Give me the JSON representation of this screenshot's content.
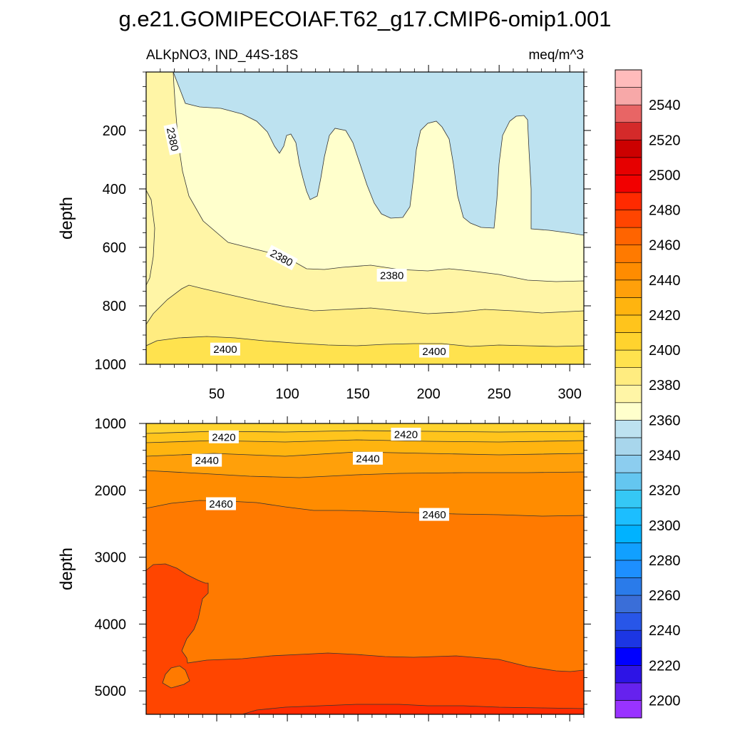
{
  "title": "g.e21.GOMIPECOIAF.T62_g17.CMIP6-omip1.001",
  "subtitle_left": "ALKpNO3, IND_44S-18S",
  "subtitle_right": "meq/m^3",
  "chart_data": {
    "type": "contour",
    "variable": "ALKpNO3",
    "region": "IND_44S-18S",
    "units": "meq/m^3",
    "x_ticks": [
      50,
      100,
      150,
      200,
      250,
      300
    ],
    "x_range": [
      0,
      310
    ],
    "colorbar": {
      "min": 2190,
      "max": 2560,
      "step": 10,
      "labels": [
        2200,
        2220,
        2240,
        2260,
        2280,
        2300,
        2320,
        2340,
        2360,
        2380,
        2400,
        2420,
        2440,
        2460,
        2480,
        2500,
        2520,
        2540
      ],
      "colors": [
        "#9933ff",
        "#6622ee",
        "#2d14e6",
        "#0000ff",
        "#1c36e3",
        "#2856e8",
        "#3a6ed8",
        "#2a7bea",
        "#1d8fff",
        "#11a0ff",
        "#00b2ff",
        "#1cbeff",
        "#35c8f5",
        "#64c6f0",
        "#8ccdef",
        "#a8d6ec",
        "#bde2f0",
        "#ffffcc",
        "#fff5a6",
        "#ffec80",
        "#ffe24e",
        "#ffd32e",
        "#ffc41c",
        "#ffb40f",
        "#ffa00a",
        "#ff8c00",
        "#ff7a00",
        "#ff6400",
        "#ff4500",
        "#ff2a00",
        "#f20000",
        "#e60000",
        "#cc0000",
        "#d42a2a",
        "#e86565",
        "#f7a8a8",
        "#ffbbbb"
      ]
    },
    "panels": [
      {
        "name": "upper",
        "ylabel": "depth",
        "y_range": [
          0,
          1000
        ],
        "y_ticks": [
          200,
          400,
          600,
          800,
          1000
        ],
        "contour_labels": [
          {
            "text": "2380",
            "x": 19,
            "y": 230
          },
          {
            "text": "2380",
            "x": 96,
            "y": 635
          },
          {
            "text": "2380",
            "x": 174,
            "y": 695
          },
          {
            "text": "2400",
            "x": 56,
            "y": 948
          },
          {
            "text": "2400",
            "x": 204,
            "y": 955
          }
        ]
      },
      {
        "name": "lower",
        "ylabel": "depth",
        "y_range": [
          1000,
          5350
        ],
        "y_ticks": [
          1000,
          2000,
          3000,
          4000,
          5000
        ],
        "contour_labels": [
          {
            "text": "2420",
            "x": 55,
            "y": 1200
          },
          {
            "text": "2420",
            "x": 184,
            "y": 1160
          },
          {
            "text": "2440",
            "x": 43,
            "y": 1550
          },
          {
            "text": "2440",
            "x": 157,
            "y": 1520
          },
          {
            "text": "2460",
            "x": 53,
            "y": 2200
          },
          {
            "text": "2460",
            "x": 204,
            "y": 2360
          }
        ]
      }
    ]
  }
}
